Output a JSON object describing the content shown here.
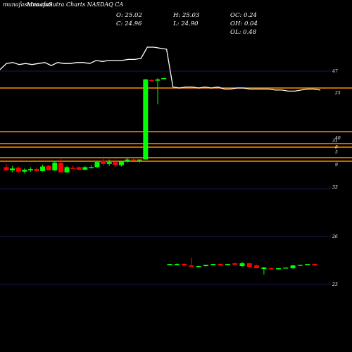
{
  "header": {
    "watermark": "munafasutra.com",
    "title": "MunafaSutra Charts NASDAQ CA"
  },
  "ohlc": {
    "o": "O: 25.02",
    "h": "H: 25.03",
    "oc": "OC: 0.24",
    "c": "C: 24.96",
    "l": "L: 24.90",
    "oh": "OH: 0.04",
    "ol": "OL: 0.48"
  },
  "colors": {
    "background": "#000000",
    "up": "#00ff00",
    "down": "#ff0000",
    "level_line": "#ff8c00",
    "grid": "#1a1a55",
    "price_line": "#ffffff"
  },
  "chart_data": {
    "type": "candlestick",
    "tick_labels": [
      {
        "id": "t47",
        "text": "47"
      },
      {
        "id": "t25",
        "text": "25"
      },
      {
        "id": "t40",
        "text": "40"
      },
      {
        "id": "t31",
        "text": "31"
      },
      {
        "id": "t8",
        "text": "8"
      },
      {
        "id": "t5",
        "text": "5"
      },
      {
        "id": "t9",
        "text": "9"
      },
      {
        "id": "t33",
        "text": "33"
      },
      {
        "id": "t26",
        "text": "26"
      },
      {
        "id": "t23",
        "text": "23"
      }
    ],
    "grid_levels": [
      47,
      33,
      26,
      23
    ],
    "horizontal_levels": [
      25,
      40,
      31,
      8,
      5,
      9
    ],
    "upper_candles": [
      {
        "o": 25.4,
        "h": 25.9,
        "l": 24.8,
        "c": 24.9
      },
      {
        "o": 24.9,
        "h": 25.6,
        "l": 24.6,
        "c": 25.2
      },
      {
        "o": 25.3,
        "h": 25.5,
        "l": 24.5,
        "c": 24.7
      },
      {
        "o": 24.7,
        "h": 25.2,
        "l": 24.4,
        "c": 25.0
      },
      {
        "o": 24.9,
        "h": 25.4,
        "l": 24.7,
        "c": 25.1
      },
      {
        "o": 25.1,
        "h": 25.4,
        "l": 24.7,
        "c": 24.8
      },
      {
        "o": 24.8,
        "h": 25.8,
        "l": 24.7,
        "c": 25.5
      },
      {
        "o": 25.6,
        "h": 25.7,
        "l": 24.9,
        "c": 24.9
      },
      {
        "o": 24.9,
        "h": 26.4,
        "l": 24.8,
        "c": 26.1
      },
      {
        "o": 26.1,
        "h": 26.7,
        "l": 24.6,
        "c": 24.6
      },
      {
        "o": 24.6,
        "h": 25.6,
        "l": 24.5,
        "c": 25.4
      },
      {
        "o": 25.3,
        "h": 25.6,
        "l": 25.1,
        "c": 25.2
      },
      {
        "o": 25.4,
        "h": 25.5,
        "l": 25.0,
        "c": 25.0
      },
      {
        "o": 25.0,
        "h": 25.6,
        "l": 24.9,
        "c": 25.4
      },
      {
        "o": 25.3,
        "h": 25.7,
        "l": 25.2,
        "c": 25.4
      },
      {
        "o": 25.4,
        "h": 26.3,
        "l": 25.3,
        "c": 26.2
      },
      {
        "o": 26.4,
        "h": 27.1,
        "l": 25.6,
        "c": 25.9
      },
      {
        "o": 25.9,
        "h": 26.6,
        "l": 25.6,
        "c": 26.2
      },
      {
        "o": 26.2,
        "h": 26.6,
        "l": 25.3,
        "c": 25.7
      },
      {
        "o": 25.7,
        "h": 26.4,
        "l": 25.5,
        "c": 26.3
      },
      {
        "o": 26.3,
        "h": 26.9,
        "l": 26.1,
        "c": 26.6
      },
      {
        "o": 26.6,
        "h": 26.9,
        "l": 26.4,
        "c": 26.5
      },
      {
        "o": 26.5,
        "h": 26.6,
        "l": 26.1,
        "c": 26.6
      },
      {
        "o": 26.6,
        "h": 39.2,
        "l": 26.6,
        "c": 39.1
      },
      {
        "o": 39.0,
        "h": 39.1,
        "l": 38.9,
        "c": 38.9
      },
      {
        "o": 38.9,
        "h": 39.3,
        "l": 35.2,
        "c": 39.1
      },
      {
        "o": 39.2,
        "h": 39.3,
        "l": 39.2,
        "c": 39.3
      }
    ],
    "lower_candles": [
      {
        "o": 24.0,
        "h": 24.1,
        "l": 23.9,
        "c": 24.1
      },
      {
        "o": 24.0,
        "h": 24.2,
        "l": 23.9,
        "c": 24.1
      },
      {
        "o": 24.1,
        "h": 24.2,
        "l": 23.9,
        "c": 23.9
      },
      {
        "o": 23.9,
        "h": 25.0,
        "l": 23.7,
        "c": 23.7
      },
      {
        "o": 23.8,
        "h": 23.9,
        "l": 23.7,
        "c": 23.8
      },
      {
        "o": 23.8,
        "h": 24.0,
        "l": 23.7,
        "c": 24.0
      },
      {
        "o": 24.0,
        "h": 24.1,
        "l": 23.9,
        "c": 24.1
      },
      {
        "o": 24.1,
        "h": 24.2,
        "l": 23.8,
        "c": 23.9
      },
      {
        "o": 24.0,
        "h": 24.1,
        "l": 23.9,
        "c": 24.1
      },
      {
        "o": 24.2,
        "h": 24.3,
        "l": 24.0,
        "c": 24.0
      },
      {
        "o": 23.8,
        "h": 24.4,
        "l": 23.7,
        "c": 24.2
      },
      {
        "o": 24.2,
        "h": 24.3,
        "l": 23.9,
        "c": 23.7
      },
      {
        "o": 23.9,
        "h": 24.0,
        "l": 23.5,
        "c": 23.5
      },
      {
        "o": 23.4,
        "h": 23.7,
        "l": 22.6,
        "c": 23.6
      },
      {
        "o": 23.5,
        "h": 23.6,
        "l": 23.4,
        "c": 23.4
      },
      {
        "o": 23.4,
        "h": 23.5,
        "l": 23.3,
        "c": 23.5
      },
      {
        "o": 23.5,
        "h": 23.6,
        "l": 23.5,
        "c": 23.6
      },
      {
        "o": 23.5,
        "h": 24.0,
        "l": 23.4,
        "c": 23.9
      },
      {
        "o": 23.9,
        "h": 24.0,
        "l": 23.8,
        "c": 24.0
      },
      {
        "o": 24.0,
        "h": 24.1,
        "l": 24.0,
        "c": 24.1
      },
      {
        "o": 24.1,
        "h": 24.1,
        "l": 23.9,
        "c": 23.9
      }
    ],
    "close_line": [
      34.0,
      34.6,
      34.7,
      34.5,
      34.6,
      34.5,
      34.6,
      34.7,
      34.4,
      34.7,
      34.6,
      34.6,
      34.7,
      34.7,
      34.6,
      34.9,
      34.8,
      34.9,
      34.9,
      34.9,
      35.0,
      35.0,
      35.1,
      36.2,
      36.2,
      36.1,
      36.0,
      32.3,
      32.2,
      32.3,
      32.3,
      32.2,
      32.3,
      32.2,
      32.3,
      32.1,
      32.1,
      32.2,
      32.2,
      32.1,
      32.1,
      32.1,
      32.1,
      32.0,
      32.0,
      31.9,
      31.9,
      32.0,
      32.1,
      32.1,
      32.0
    ]
  }
}
